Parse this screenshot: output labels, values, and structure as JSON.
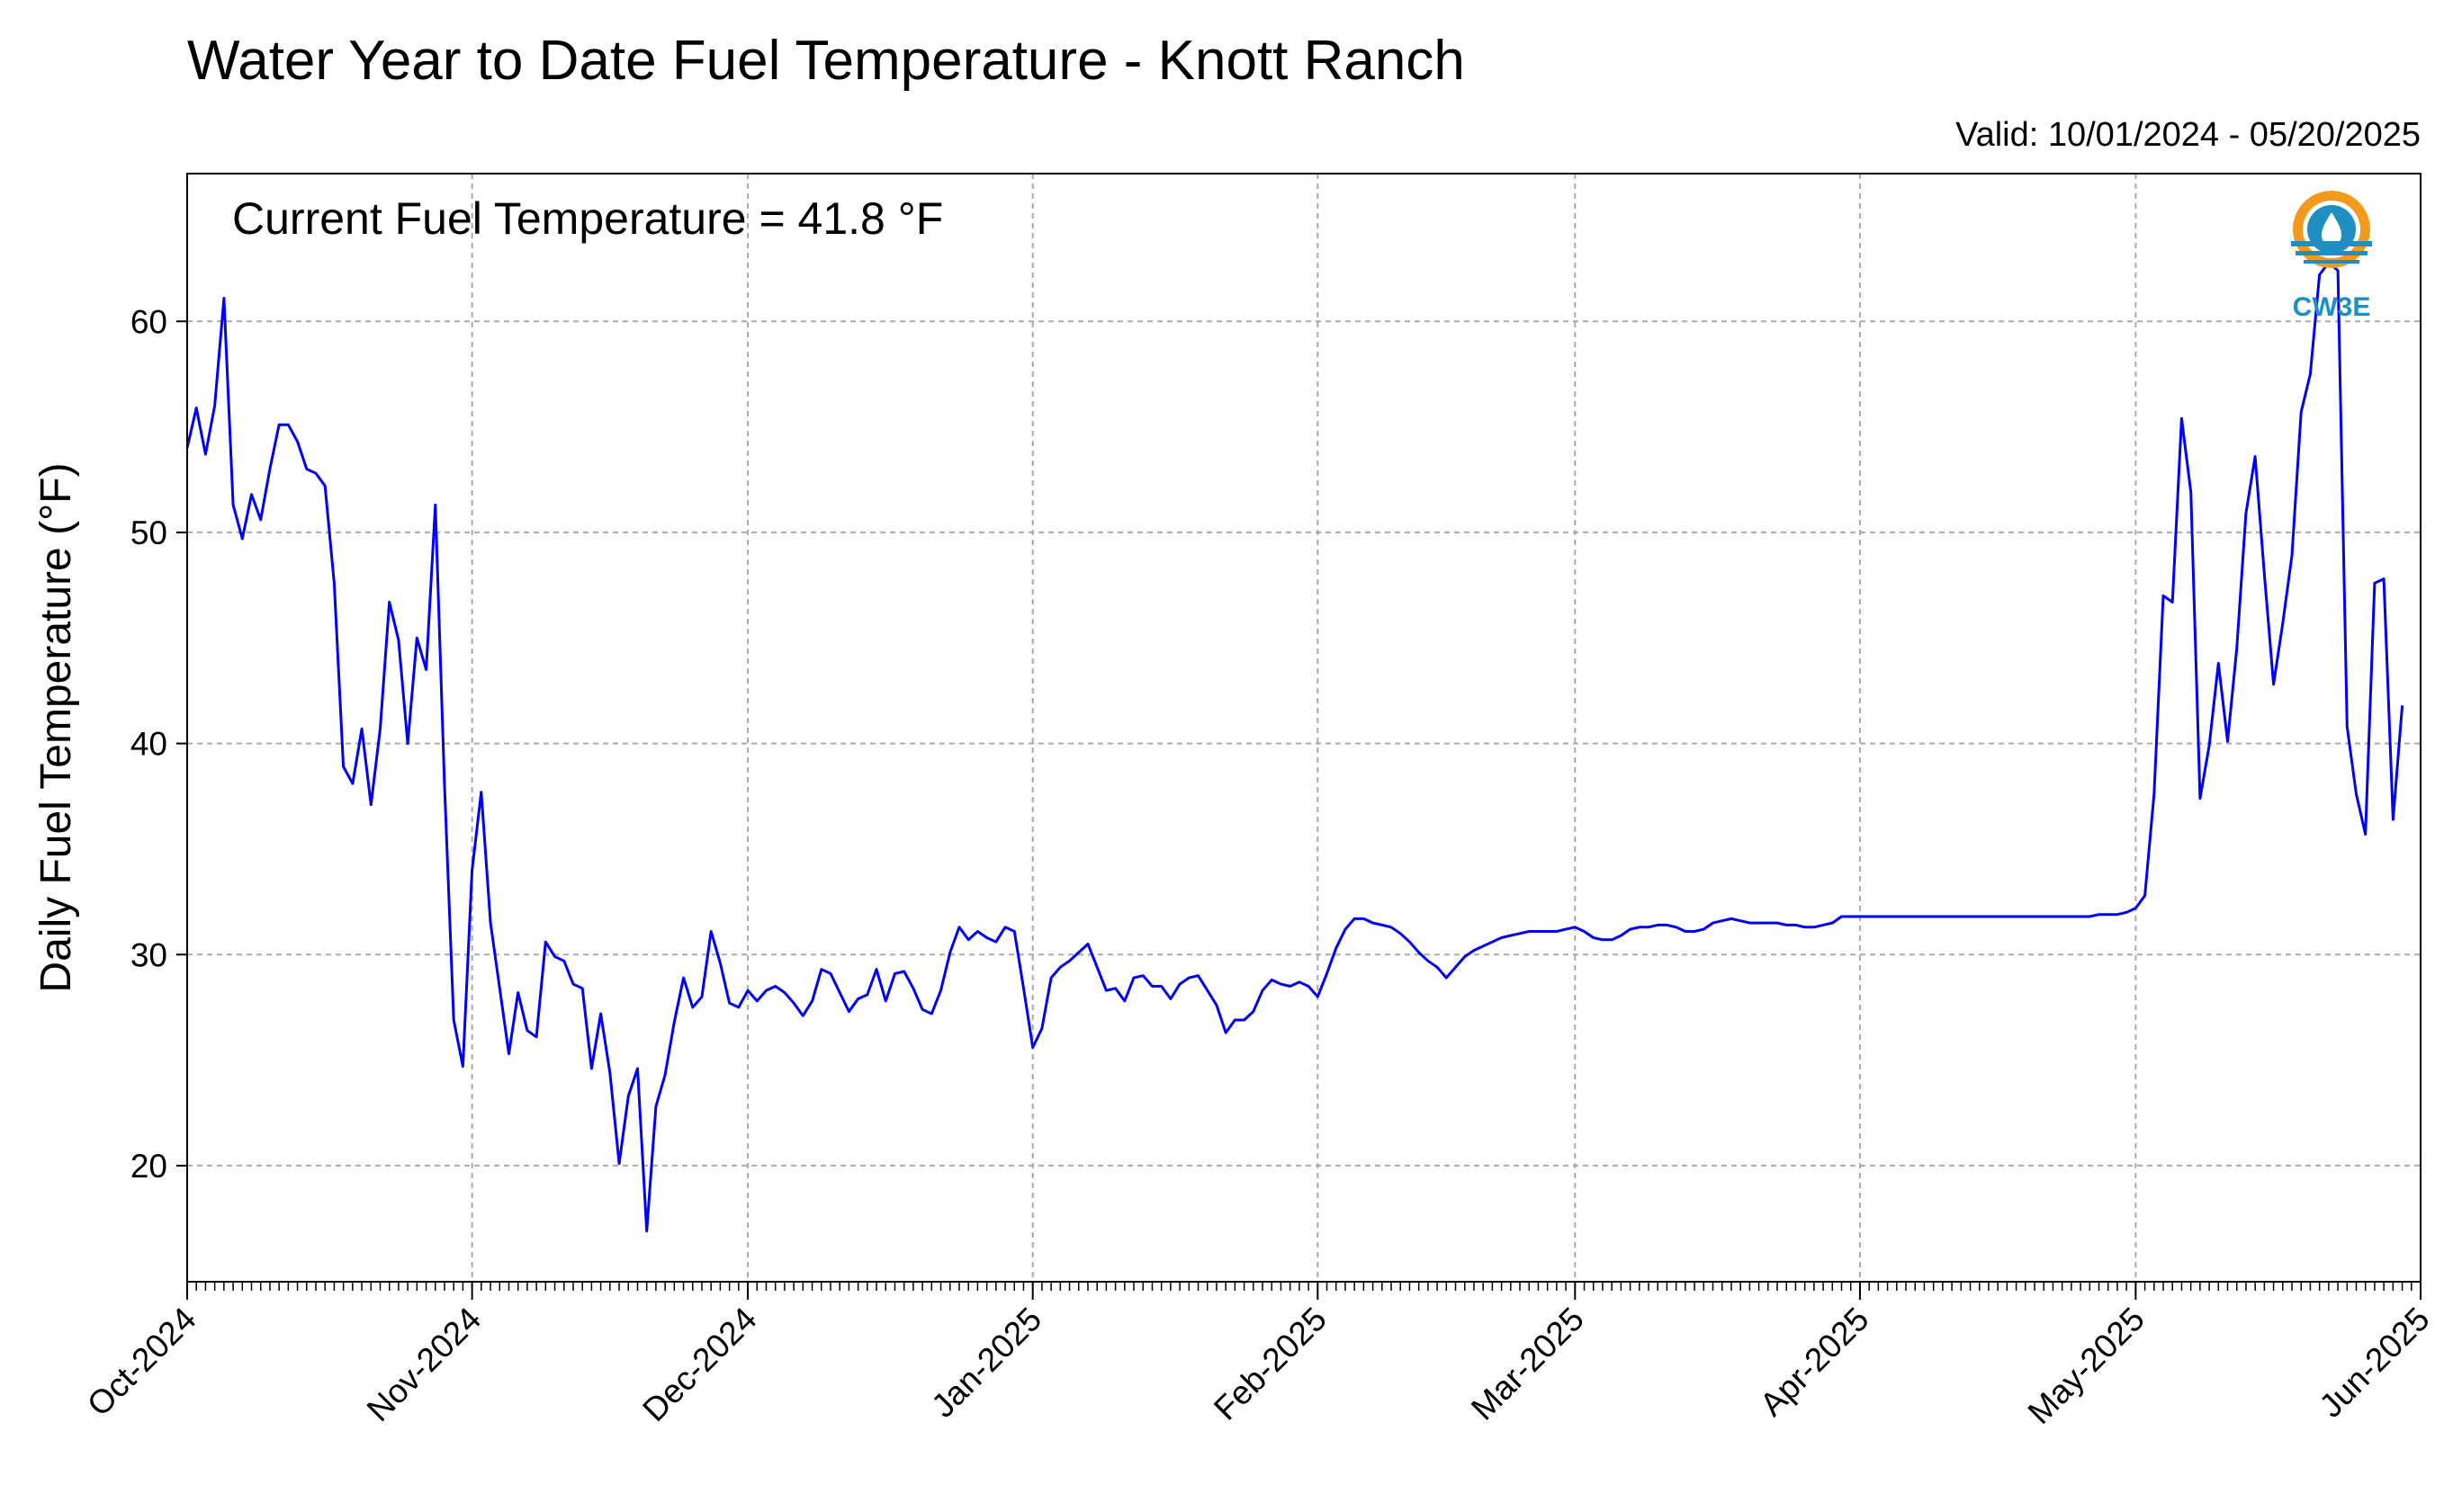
{
  "title": "Water Year to Date Fuel Temperature - Knott Ranch",
  "valid_text": "Valid: 10/01/2024 - 05/20/2025",
  "annotation": "Current Fuel Temperature = 41.8 °F",
  "logo": {
    "text": "CW3E",
    "icon": "cw3e-water-drop-sun-logo",
    "colors": [
      "#f39a1e",
      "#1f8fc1"
    ]
  },
  "chart_data": {
    "type": "line",
    "title": "Water Year to Date Fuel Temperature - Knott Ranch",
    "xlabel": "",
    "ylabel": "Daily Fuel Temperature (°F)",
    "xlim": [
      "2024-10-01",
      "2025-06-01"
    ],
    "ylim": [
      14.5,
      67
    ],
    "yticks": [
      20,
      30,
      40,
      50,
      60
    ],
    "xtick_labels": [
      "Oct-2024",
      "Nov-2024",
      "Dec-2024",
      "Jan-2025",
      "Feb-2025",
      "Mar-2025",
      "Apr-2025",
      "May-2025",
      "Jun-2025"
    ],
    "xtick_dates": [
      "2024-10-01",
      "2024-11-01",
      "2024-12-01",
      "2025-01-01",
      "2025-02-01",
      "2025-03-01",
      "2025-04-01",
      "2025-05-01",
      "2025-06-01"
    ],
    "grid": true,
    "line_color": "#0000ff",
    "series": [
      {
        "start_date": "2024-10-01",
        "step_days": 1,
        "values": [
          54.0,
          55.9,
          53.7,
          56.0,
          61.1,
          51.3,
          49.7,
          51.8,
          50.6,
          53.0,
          55.1,
          55.1,
          54.3,
          53.0,
          52.8,
          52.2,
          47.6,
          38.9,
          38.1,
          40.7,
          37.1,
          40.7,
          46.7,
          44.9,
          40.0,
          45.0,
          43.5,
          51.3,
          38.0,
          26.9,
          24.7,
          34.0,
          37.7,
          31.5,
          28.4,
          25.3,
          28.2,
          26.4,
          26.1,
          30.6,
          29.9,
          29.7,
          28.6,
          28.4,
          24.6,
          27.2,
          24.4,
          20.1,
          23.3,
          24.6,
          16.9,
          22.8,
          24.3,
          26.8,
          28.9,
          27.5,
          28.0,
          31.1,
          29.6,
          27.7,
          27.5,
          28.3,
          27.8,
          28.3,
          28.5,
          28.2,
          27.7,
          27.1,
          27.8,
          29.3,
          29.1,
          28.2,
          27.3,
          27.9,
          28.1,
          29.3,
          27.8,
          29.1,
          29.2,
          28.4,
          27.4,
          27.2,
          28.3,
          30.1,
          31.3,
          30.7,
          31.1,
          30.8,
          30.6,
          31.3,
          31.1,
          28.4,
          25.6,
          26.5,
          28.9,
          29.4,
          29.7,
          30.1,
          30.5,
          29.4,
          28.3,
          28.4,
          27.8,
          28.9,
          29.0,
          28.5,
          28.5,
          27.9,
          28.6,
          28.9,
          29.0,
          28.3,
          27.6,
          26.3,
          26.9,
          26.9,
          27.3,
          28.3,
          28.8,
          28.6,
          28.5,
          28.7,
          28.5,
          28.0,
          29.1,
          30.3,
          31.2,
          31.7,
          31.7,
          31.5,
          31.4,
          31.3,
          31.0,
          30.6,
          30.1,
          29.7,
          29.4,
          28.9,
          29.4,
          29.9,
          30.2,
          30.4,
          30.6,
          30.8,
          30.9,
          31.0,
          31.1,
          31.1,
          31.1,
          31.1,
          31.2,
          31.3,
          31.1,
          30.8,
          30.7,
          30.7,
          30.9,
          31.2,
          31.3,
          31.3,
          31.4,
          31.4,
          31.3,
          31.1,
          31.1,
          31.2,
          31.5,
          31.6,
          31.7,
          31.6,
          31.5,
          31.5,
          31.5,
          31.5,
          31.4,
          31.4,
          31.3,
          31.3,
          31.4,
          31.5,
          31.8,
          31.8,
          31.8,
          31.8,
          31.8,
          31.8,
          31.8,
          31.8,
          31.8,
          31.8,
          31.8,
          31.8,
          31.8,
          31.8,
          31.8,
          31.8,
          31.8,
          31.8,
          31.8,
          31.8,
          31.8,
          31.8,
          31.8,
          31.8,
          31.8,
          31.8,
          31.8,
          31.8,
          31.9,
          31.9,
          31.9,
          32.0,
          32.2,
          32.8,
          37.6,
          47.0,
          46.7,
          55.4,
          51.9,
          37.4,
          39.9,
          43.8,
          40.1,
          44.5,
          50.9,
          53.6,
          48.0,
          42.8,
          45.7,
          48.9,
          55.7,
          57.5,
          62.2,
          62.8,
          62.4,
          40.8,
          37.6,
          35.7,
          47.6,
          47.8,
          36.4,
          41.8
        ]
      }
    ]
  }
}
